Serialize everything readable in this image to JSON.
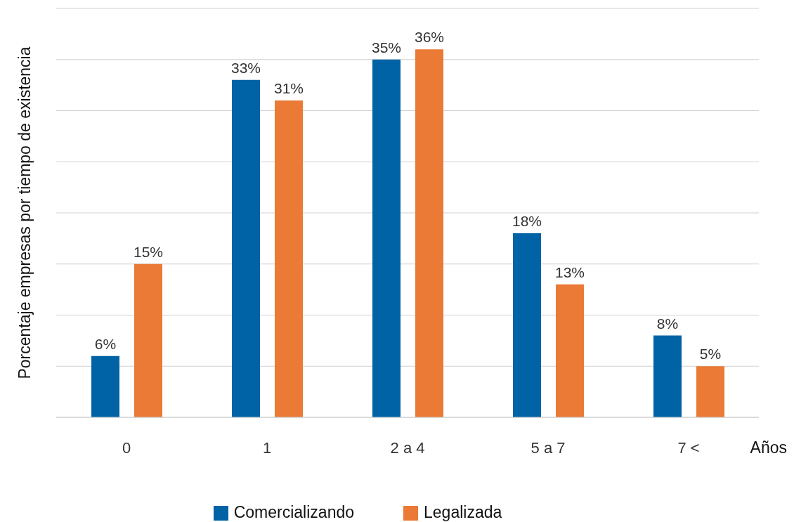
{
  "chart_data": {
    "type": "bar",
    "xlabel": "Años",
    "ylabel": "Porcentaje empresas por tiempo de existencia",
    "categories": [
      "0",
      "1",
      "2 a 4",
      "5 a 7",
      "7 <"
    ],
    "series": [
      {
        "name": "Comercializando",
        "color": "#0063a6",
        "values": [
          6,
          33,
          35,
          18,
          8
        ],
        "value_labels": [
          "6%",
          "33%",
          "35%",
          "18%",
          "8%"
        ]
      },
      {
        "name": "Legalizada",
        "color": "#ea7a35",
        "values": [
          15,
          31,
          36,
          13,
          5
        ],
        "value_labels": [
          "15%",
          "31%",
          "36%",
          "13%",
          "5%"
        ]
      }
    ],
    "ylim": [
      0,
      40
    ],
    "yticks": [
      {
        "value": 0,
        "label": null
      },
      {
        "value": 5,
        "label": null
      },
      {
        "value": 10,
        "label": null
      },
      {
        "value": 15,
        "label": null
      },
      {
        "value": 20,
        "label": null
      },
      {
        "value": 25,
        "label": null
      },
      {
        "value": 30,
        "label": null
      },
      {
        "value": 35,
        "label": null
      },
      {
        "value": 40,
        "label": null
      }
    ],
    "grid": "y",
    "legend": "bottom",
    "tick_labels": "x"
  }
}
